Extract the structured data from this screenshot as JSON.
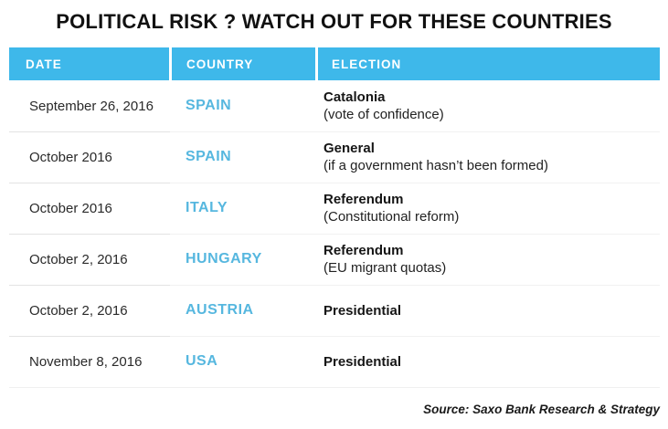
{
  "colors": {
    "header_bg": "#3EB8EA",
    "header_text": "#FFFFFF",
    "country_text": "#56B7DF",
    "title_text": "#111111",
    "row_divider": "#E3E3E3"
  },
  "chart_data": {
    "type": "table",
    "title": "POLITICAL RISK ? WATCH OUT FOR THESE COUNTRIES",
    "columns": [
      "DATE",
      "COUNTRY",
      "ELECTION"
    ],
    "rows": [
      {
        "date": "September 26, 2016",
        "country": "SPAIN",
        "election": "Catalonia",
        "detail": "(vote of confidence)"
      },
      {
        "date": "October 2016",
        "country": "SPAIN",
        "election": "General",
        "detail": "(if a government hasn’t been formed)"
      },
      {
        "date": "October 2016",
        "country": "ITALY",
        "election": "Referendum",
        "detail": "(Constitutional reform)"
      },
      {
        "date": "October 2, 2016",
        "country": "HUNGARY",
        "election": "Referendum",
        "detail": "(EU migrant quotas)"
      },
      {
        "date": "October 2, 2016",
        "country": "AUSTRIA",
        "election": "Presidential",
        "detail": ""
      },
      {
        "date": "November 8, 2016",
        "country": "USA",
        "election": "Presidential",
        "detail": ""
      }
    ],
    "source": "Source: Saxo Bank Research & Strategy"
  }
}
